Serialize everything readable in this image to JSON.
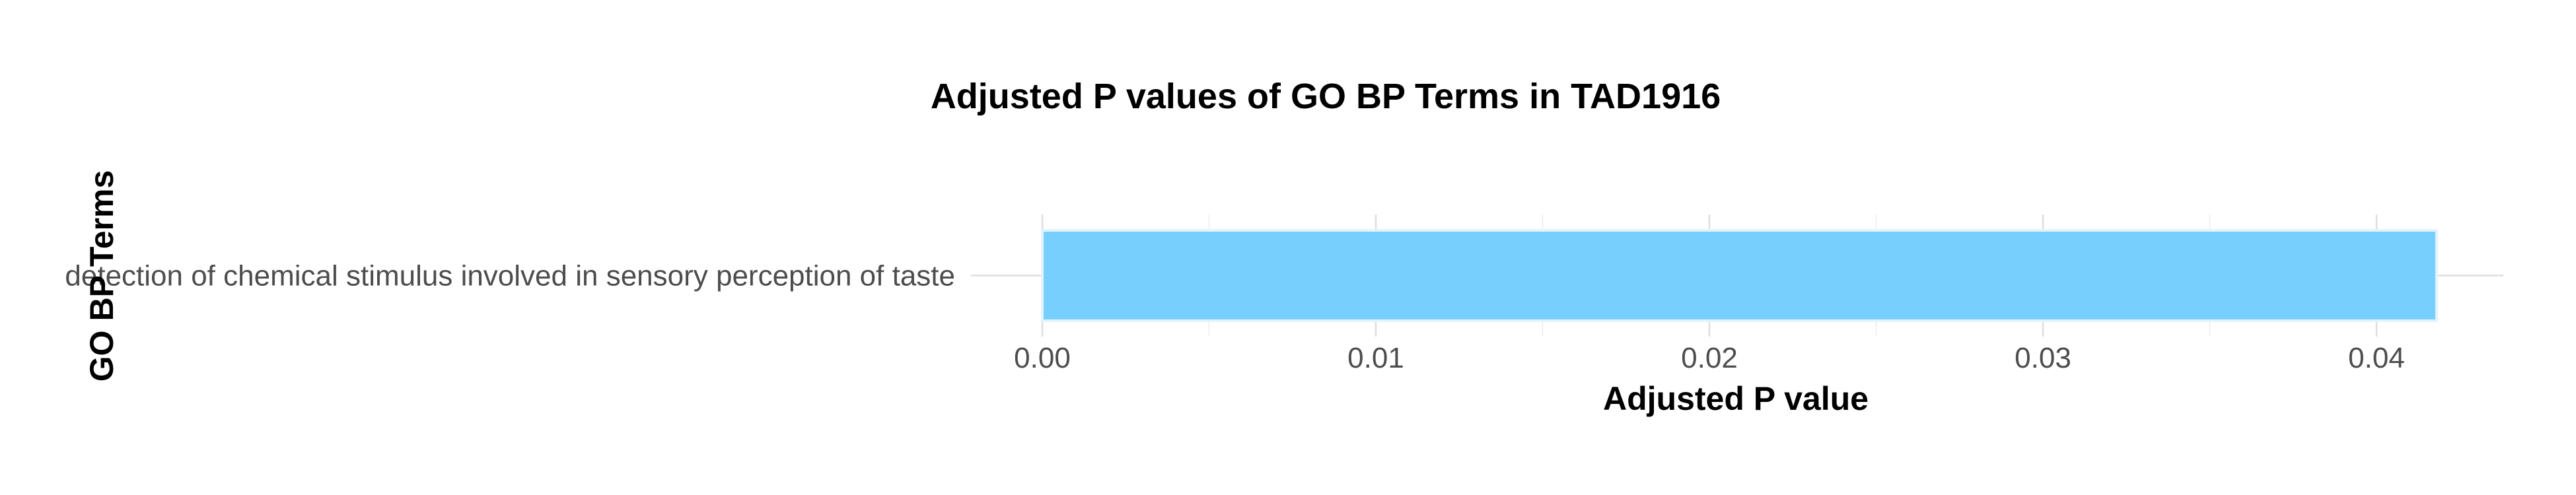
{
  "chart_data": {
    "type": "bar",
    "orientation": "horizontal",
    "title": "Adjusted P values of GO BP Terms in TAD1916",
    "xlabel": "Adjusted P value",
    "ylabel": "GO BP Terms",
    "categories": [
      "detection of chemical stimulus involved in sensory perception of taste"
    ],
    "values": [
      0.0418
    ],
    "xlim": [
      0,
      0.044
    ],
    "xticks": [
      0,
      0.01,
      0.02,
      0.03,
      0.04
    ],
    "xtick_labels": [
      "0.00",
      "0.01",
      "0.02",
      "0.03",
      "0.04"
    ],
    "grid": true,
    "bar_color": "#76cffd"
  }
}
